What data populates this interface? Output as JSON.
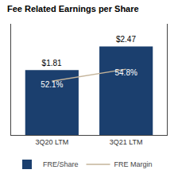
{
  "chart_data": {
    "type": "bar",
    "title": "Fee Related Earnings per Share",
    "categories": [
      "3Q20 LTM",
      "3Q21 LTM"
    ],
    "series": [
      {
        "name": "FRE/Share",
        "type": "bar",
        "color": "#1b3f6e",
        "values": [
          1.81,
          2.47
        ],
        "value_labels": [
          "$1.81",
          "$2.47"
        ]
      },
      {
        "name": "FRE Margin",
        "type": "line",
        "axis": "y2",
        "color": "#c4b49a",
        "values": [
          52.1,
          54.8
        ],
        "value_labels": [
          "52.1%",
          "54.8%"
        ]
      }
    ],
    "ylim": [
      0,
      3.1
    ],
    "y2lim": [
      40,
      65
    ],
    "data_labels": true,
    "tick_labels": "x",
    "grid": false,
    "legend": "lower left"
  }
}
